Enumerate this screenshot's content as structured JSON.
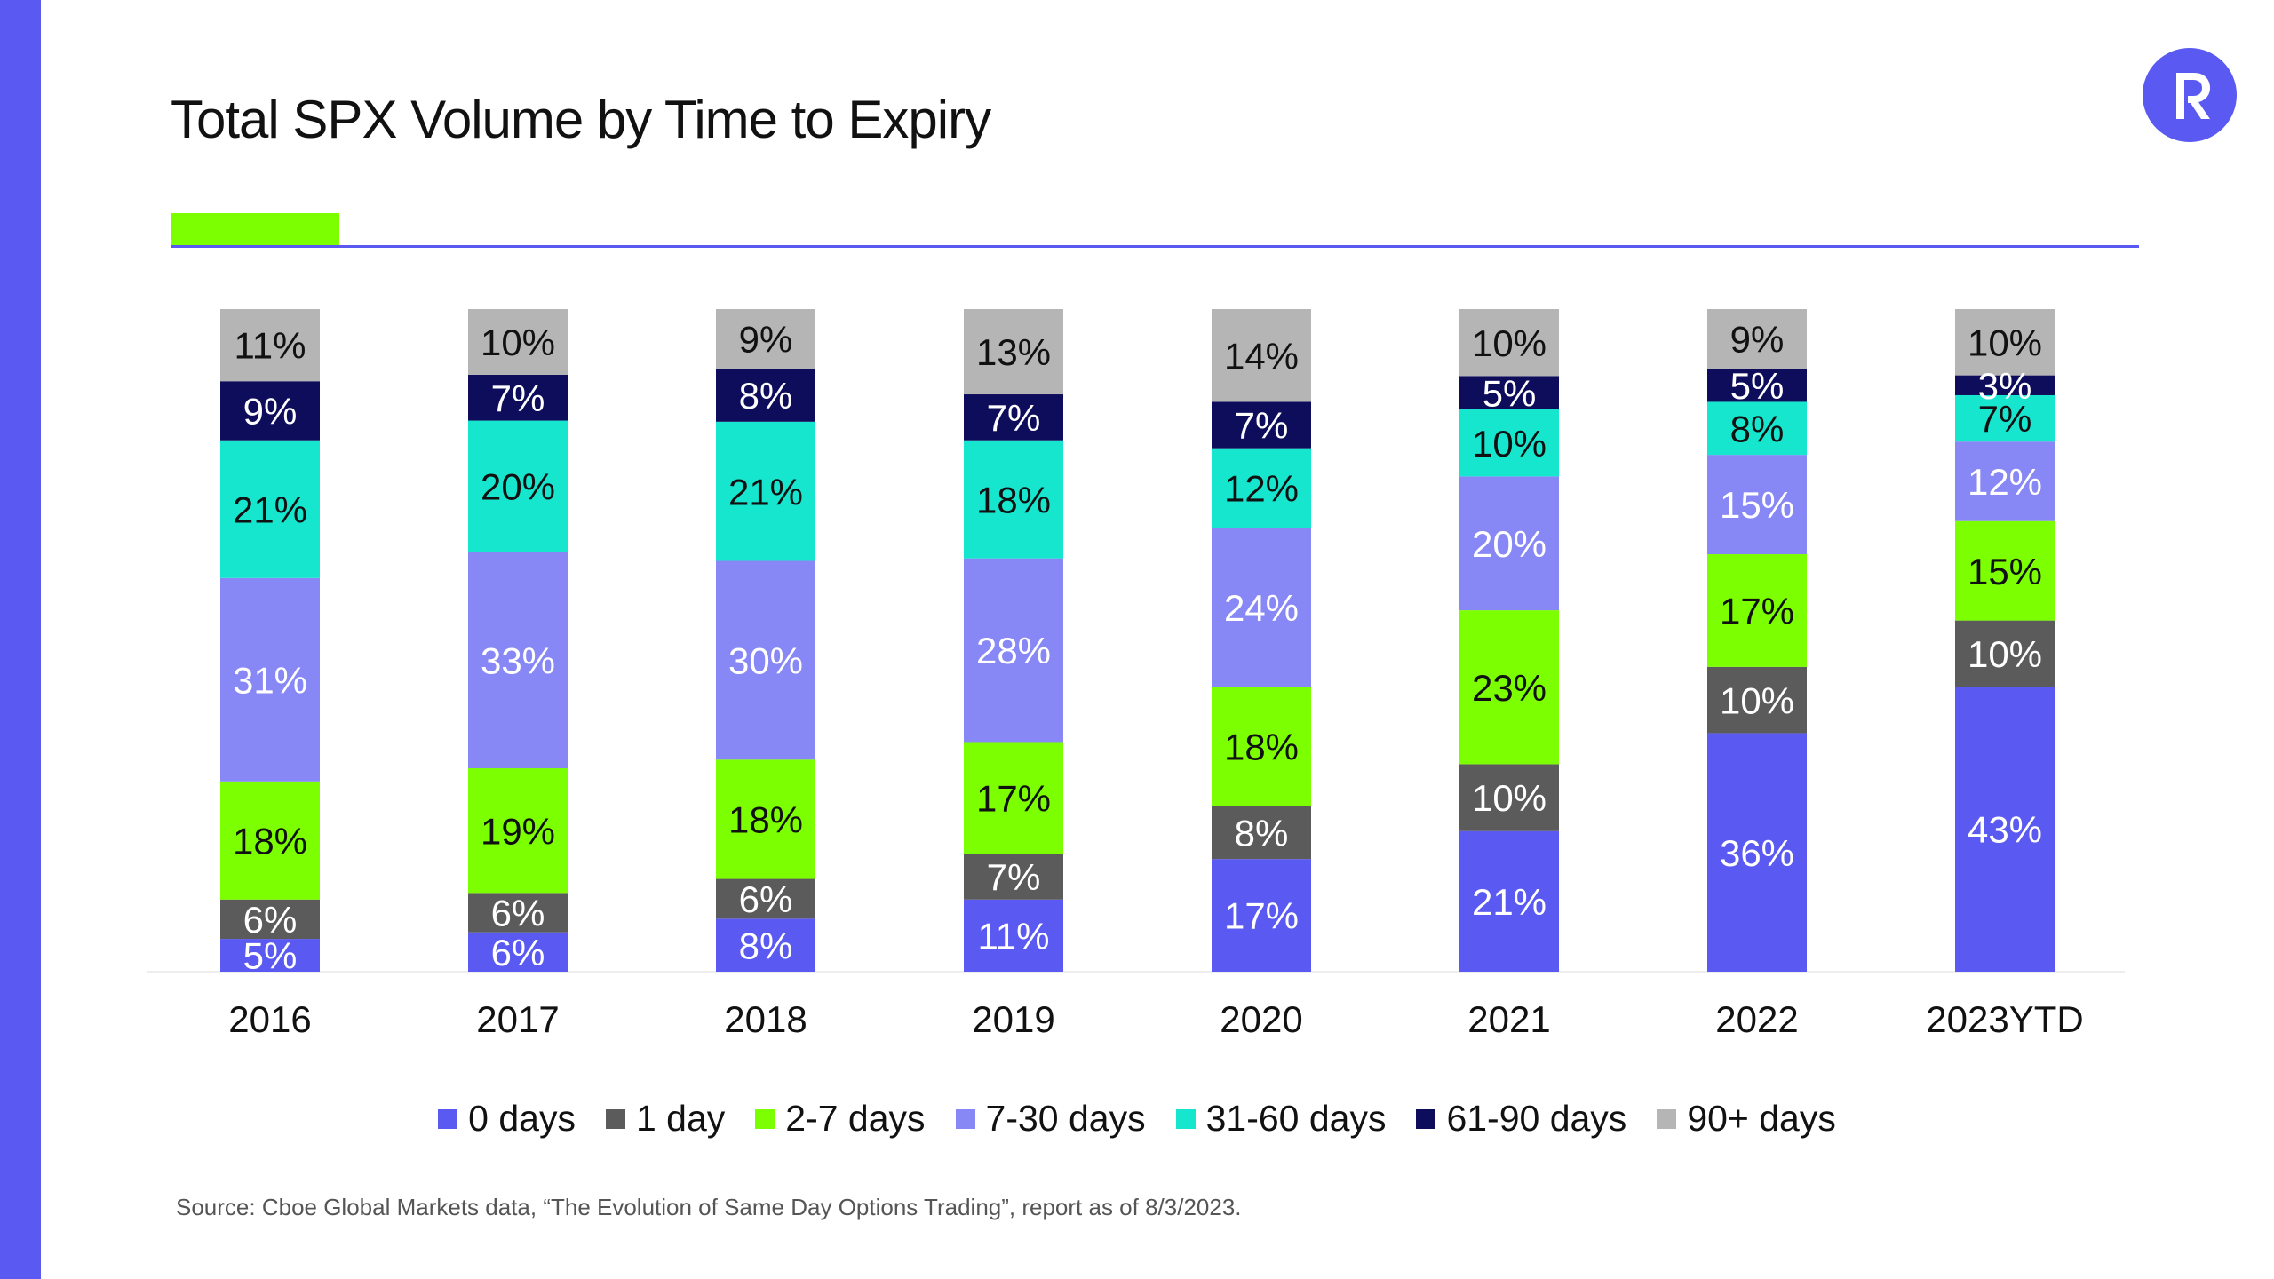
{
  "title": "Total SPX Volume by Time to Expiry",
  "source": "Source: Cboe Global Markets data, “The Evolution of Same Day Options Trading”, report as of 8/3/2023.",
  "brand": {
    "icon": "r-logo-icon",
    "color": "#5a5af2"
  },
  "accent_colors": {
    "sidebar": "#5a5af2",
    "accent_block": "#7cff00",
    "rule": "#5a5af2"
  },
  "chart_data": {
    "type": "bar",
    "stacked": true,
    "categories": [
      "2016",
      "2017",
      "2018",
      "2019",
      "2020",
      "2021",
      "2022",
      "2023YTD"
    ],
    "series": [
      {
        "name": "0 days",
        "color": "#5a5af2",
        "label_color": "#ffffff",
        "values": [
          5,
          6,
          8,
          11,
          17,
          21,
          36,
          43
        ]
      },
      {
        "name": "1 day",
        "color": "#5b5b5b",
        "label_color": "#ffffff",
        "values": [
          6,
          6,
          6,
          7,
          8,
          10,
          10,
          10
        ]
      },
      {
        "name": "2-7 days",
        "color": "#7cff00",
        "label_color": "#111111",
        "values": [
          18,
          19,
          18,
          17,
          18,
          23,
          17,
          15
        ]
      },
      {
        "name": "7-30 days",
        "color": "#8787f5",
        "label_color": "#ffffff",
        "values": [
          31,
          33,
          30,
          28,
          24,
          20,
          15,
          12
        ]
      },
      {
        "name": "31-60 days",
        "color": "#17e6cf",
        "label_color": "#111111",
        "values": [
          21,
          20,
          21,
          18,
          12,
          10,
          8,
          7
        ]
      },
      {
        "name": "61-90 days",
        "color": "#0d0d5c",
        "label_color": "#ffffff",
        "values": [
          9,
          7,
          8,
          7,
          7,
          5,
          5,
          3
        ]
      },
      {
        "name": "90+ days",
        "color": "#b5b5b5",
        "label_color": "#111111",
        "values": [
          11,
          10,
          9,
          13,
          14,
          10,
          9,
          10
        ]
      }
    ],
    "value_suffix": "%",
    "xlabel": "",
    "ylabel": "",
    "grid": false,
    "legend_position": "bottom-center"
  }
}
